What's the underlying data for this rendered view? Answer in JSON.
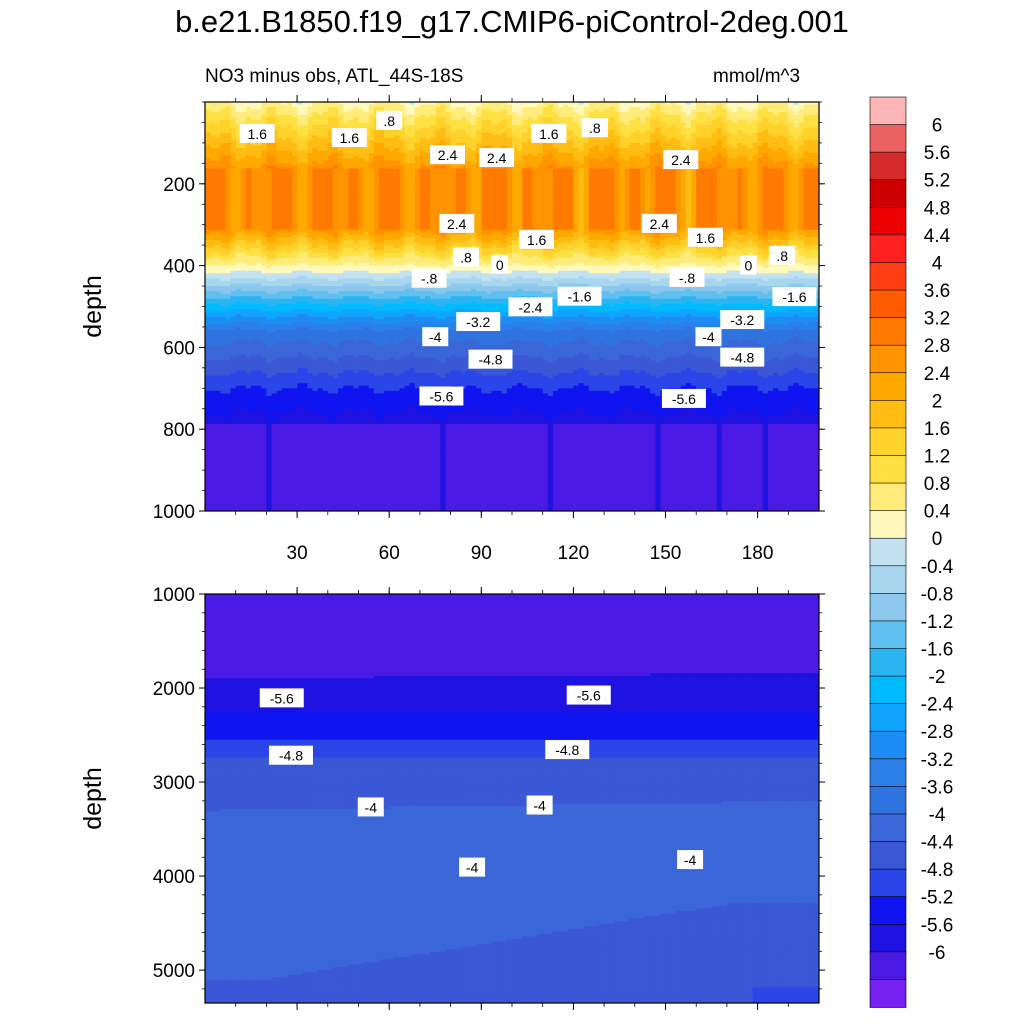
{
  "title": "b.e21.B1850.f19_g17.CMIP6-piControl-2deg.001",
  "subtitle_left": "NO3 minus obs, ATL_44S-18S",
  "subtitle_right": "mmol/m^3",
  "colors": {
    "levels": [
      "#fdb5b5",
      "#eb6161",
      "#d62b2b",
      "#cc0000",
      "#ec0000",
      "#ff2020",
      "#ff3e12",
      "#ff5b00",
      "#ff7a00",
      "#ff9400",
      "#ffa800",
      "#ffbc12",
      "#ffd12b",
      "#ffe043",
      "#ffec7a",
      "#fff9bb",
      "#c2e2f2",
      "#a8d6ef",
      "#8cc8ee",
      "#60c0f0",
      "#2ab4f2",
      "#00bbff",
      "#11a4ff",
      "#1d8cf4",
      "#2b80e8",
      "#2f73e0",
      "#3a66d8",
      "#3a57d6",
      "#2b46e8",
      "#0f14f0",
      "#1e12e0",
      "#4a1ae4",
      "#7621ef"
    ],
    "label_boxes": "#ffffff"
  },
  "chart_data": [
    {
      "type": "contour",
      "panel": "upper",
      "ylabel": "depth",
      "xlabel": "",
      "xlim": [
        0,
        200
      ],
      "ylim": [
        1000,
        0
      ],
      "x_ticks": [
        "30",
        "60",
        "90",
        "120",
        "150",
        "180"
      ],
      "y_ticks": [
        "200",
        "400",
        "600",
        "800",
        "1000"
      ],
      "contour_labels": [
        {
          "text": "1.6",
          "x": 17,
          "y": 78
        },
        {
          "text": ".8",
          "x": 60,
          "y": 46
        },
        {
          "text": "1.6",
          "x": 47,
          "y": 88
        },
        {
          "text": "2.4",
          "x": 79,
          "y": 130
        },
        {
          "text": "2.4",
          "x": 95,
          "y": 137
        },
        {
          "text": "1.6",
          "x": 112,
          "y": 78
        },
        {
          "text": ".8",
          "x": 127,
          "y": 64
        },
        {
          "text": "2.4",
          "x": 155,
          "y": 142
        },
        {
          "text": "2.4",
          "x": 82,
          "y": 298
        },
        {
          "text": "1.6",
          "x": 108,
          "y": 337
        },
        {
          "text": "2.4",
          "x": 148,
          "y": 298
        },
        {
          "text": "1.6",
          "x": 163,
          "y": 332
        },
        {
          "text": ".8",
          "x": 85,
          "y": 380
        },
        {
          "text": "0",
          "x": 96,
          "y": 398
        },
        {
          "text": ".8",
          "x": 188,
          "y": 376
        },
        {
          "text": "0",
          "x": 177,
          "y": 400
        },
        {
          "text": "-.8",
          "x": 73,
          "y": 432
        },
        {
          "text": "-.8",
          "x": 157,
          "y": 430
        },
        {
          "text": "-1.6",
          "x": 122,
          "y": 476
        },
        {
          "text": "-1.6",
          "x": 192,
          "y": 477
        },
        {
          "text": "-2.4",
          "x": 106,
          "y": 502
        },
        {
          "text": "-3.2",
          "x": 89,
          "y": 538
        },
        {
          "text": "-3.2",
          "x": 175,
          "y": 533
        },
        {
          "text": "-4",
          "x": 75,
          "y": 575
        },
        {
          "text": "-4",
          "x": 164,
          "y": 575
        },
        {
          "text": "-4.8",
          "x": 93,
          "y": 630
        },
        {
          "text": "-4.8",
          "x": 175,
          "y": 625
        },
        {
          "text": "-5.6",
          "x": 77,
          "y": 720
        },
        {
          "text": "-5.6",
          "x": 156,
          "y": 726
        }
      ]
    },
    {
      "type": "contour",
      "panel": "lower",
      "ylabel": "depth",
      "xlabel": "",
      "xlim": [
        0,
        200
      ],
      "ylim": [
        1000,
        5350
      ],
      "x_ticks": [],
      "y_ticks": [
        "1000",
        "2000",
        "3000",
        "4000",
        "5000"
      ],
      "contour_labels": [
        {
          "text": "-5.6",
          "x": 25,
          "y": 2110
        },
        {
          "text": "-5.6",
          "x": 125,
          "y": 2080
        },
        {
          "text": "-4.8",
          "x": 28,
          "y": 2720
        },
        {
          "text": "-4.8",
          "x": 118,
          "y": 2660
        },
        {
          "text": "-4",
          "x": 54,
          "y": 3270
        },
        {
          "text": "-4",
          "x": 109,
          "y": 3250
        },
        {
          "text": "-4",
          "x": 87,
          "y": 3910
        },
        {
          "text": "-4",
          "x": 158,
          "y": 3830
        }
      ]
    }
  ],
  "colorbar": {
    "labels": [
      "6",
      "5.6",
      "5.2",
      "4.8",
      "4.4",
      "4",
      "3.6",
      "3.2",
      "2.8",
      "2.4",
      "2",
      "1.6",
      "1.2",
      "0.8",
      "0.4",
      "0",
      "-0.4",
      "-0.8",
      "-1.2",
      "-1.6",
      "-2",
      "-2.4",
      "-2.8",
      "-3.2",
      "-3.6",
      "-4",
      "-4.4",
      "-4.8",
      "-5.2",
      "-5.6",
      "-6"
    ]
  }
}
